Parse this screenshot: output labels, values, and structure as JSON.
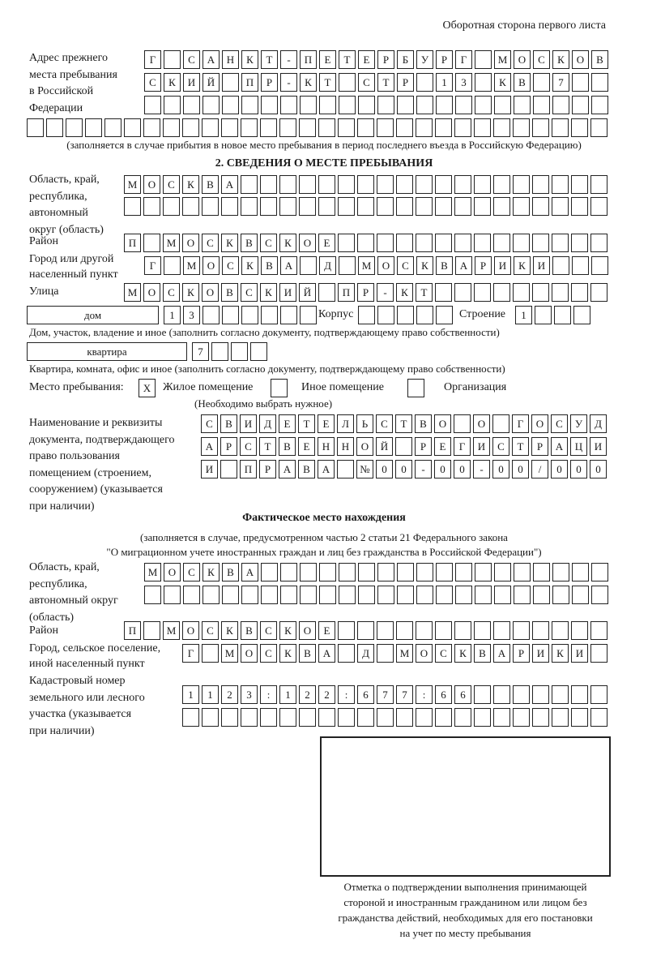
{
  "header": {
    "side_label": "Оборотная сторона первого листа"
  },
  "previous_address": {
    "label": "Адрес прежнего\nместа пребывания\nв Российской\nФедерации",
    "rows": [
      [
        "Г",
        "",
        "С",
        "А",
        "Н",
        "К",
        "Т",
        "-",
        "П",
        "Е",
        "Т",
        "Е",
        "Р",
        "Б",
        "У",
        "Р",
        "Г",
        "",
        "М",
        "О",
        "С",
        "К",
        "О",
        "В"
      ],
      [
        "С",
        "К",
        "И",
        "Й",
        "",
        "П",
        "Р",
        "-",
        "К",
        "Т",
        "",
        "С",
        "Т",
        "Р",
        "",
        "1",
        "3",
        "",
        "К",
        "В",
        "",
        "7"
      ],
      [],
      []
    ],
    "note": "(заполняется в случае прибытия в новое место пребывания в период последнего въезда в Российскую Федерацию)"
  },
  "section2": {
    "title": "2. СВЕДЕНИЯ О МЕСТЕ ПРЕБЫВАНИЯ",
    "region_label": "Область, край,\nреспублика,\nавтономный\nокруг (область)",
    "region_rows": [
      [
        "М",
        "О",
        "С",
        "К",
        "В",
        "А"
      ],
      []
    ],
    "district_label": "Район",
    "district": [
      "П",
      "",
      "М",
      "О",
      "С",
      "К",
      "В",
      "С",
      "К",
      "О",
      "Е"
    ],
    "city_label": "Город или другой\nнаселенный пункт",
    "city": [
      "Г",
      "",
      "М",
      "О",
      "С",
      "К",
      "В",
      "А",
      "",
      "Д",
      "",
      "М",
      "О",
      "С",
      "К",
      "В",
      "А",
      "Р",
      "И",
      "К",
      "И"
    ],
    "street_label": "Улица",
    "street": [
      "М",
      "О",
      "С",
      "К",
      "О",
      "В",
      "С",
      "К",
      "И",
      "Й",
      "",
      "П",
      "Р",
      "-",
      "К",
      "Т"
    ],
    "house_type": "дом",
    "house": [
      "1",
      "3"
    ],
    "korpus_label": "Корпус",
    "korpus": [],
    "building_label": "Строение",
    "building": [
      "1"
    ],
    "house_note": "Дом, участок, владение и иное (заполнить согласно документу, подтверждающему право собственности)",
    "apartment_type": "квартира",
    "apartment": [
      "7"
    ],
    "apartment_note": "Квартира, комната, офис и иное (заполнить согласно документу, подтверждающему право собственности)",
    "stay_place_label": "Место пребывания:",
    "options": [
      {
        "label": "Жилое помещение",
        "mark": "X"
      },
      {
        "label": "Иное помещение",
        "mark": ""
      },
      {
        "label": "Организация",
        "mark": ""
      }
    ],
    "options_note": "(Необходимо выбрать нужное)",
    "document_label": "Наименование и реквизиты\nдокумента, подтверждающего\nправо пользования\nпомещением (строением,\nсооружением) (указывается\nпри наличии)",
    "document_rows": [
      [
        "С",
        "В",
        "И",
        "Д",
        "Е",
        "Т",
        "Е",
        "Л",
        "Ь",
        "С",
        "Т",
        "В",
        "О",
        "",
        "О",
        "",
        "Г",
        "О",
        "С",
        "У",
        "Д"
      ],
      [
        "А",
        "Р",
        "С",
        "Т",
        "В",
        "Е",
        "Н",
        "Н",
        "О",
        "Й",
        "",
        "Р",
        "Е",
        "Г",
        "И",
        "С",
        "Т",
        "Р",
        "А",
        "Ц",
        "И"
      ],
      [
        "И",
        "",
        "П",
        "Р",
        "А",
        "В",
        "А",
        "",
        "№",
        "0",
        "0",
        "-",
        "0",
        "0",
        "-",
        "0",
        "0",
        "/",
        "0",
        "0",
        "0"
      ]
    ]
  },
  "actual": {
    "title": "Фактическое место нахождения",
    "note1": "(заполняется в случае, предусмотренном частью 2 статьи 21 Федерального закона",
    "note2": "\"О миграционном учете иностранных граждан и лиц без гражданства в Российской Федерации\")",
    "region_label": "Область, край,\nреспублика,\nавтономный округ\n(область)",
    "region_rows": [
      [
        "М",
        "О",
        "С",
        "К",
        "В",
        "А"
      ],
      []
    ],
    "district_label": "Район",
    "district": [
      "П",
      "",
      "М",
      "О",
      "С",
      "К",
      "В",
      "С",
      "К",
      "О",
      "Е"
    ],
    "city_label": "Город, сельское поселение,\nиной населенный пункт",
    "city": [
      "Г",
      "",
      "М",
      "О",
      "С",
      "К",
      "В",
      "А",
      "",
      "Д",
      "",
      "М",
      "О",
      "С",
      "К",
      "В",
      "А",
      "Р",
      "И",
      "К",
      "И"
    ],
    "cadastral_label": "Кадастровый номер\nземельного или лесного\nучастка (указывается\nпри наличии)",
    "cadastral_rows": [
      [
        "1",
        "1",
        "2",
        "3",
        ":",
        "1",
        "2",
        "2",
        ":",
        "6",
        "7",
        "7",
        ":",
        "6",
        "6"
      ],
      []
    ]
  },
  "stamp": {
    "caption": "Отметка о подтверждении выполнения принимающей\nстороной и иностранным гражданином или лицом без\nгражданства действий, необходимых для его постановки\nна учет по месту пребывания"
  }
}
